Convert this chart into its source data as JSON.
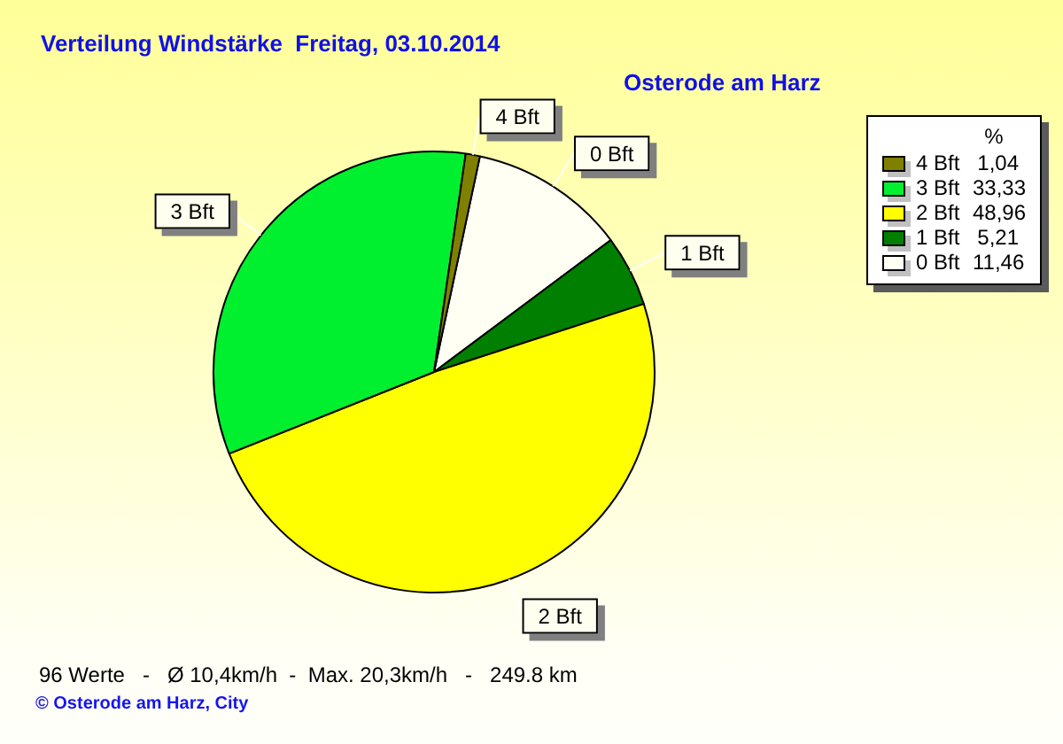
{
  "chart_data": {
    "type": "pie",
    "title": "Verteilung Windstärke  Freitag, 03.10.2014",
    "subtitle": "Osterode am Harz",
    "categories": [
      "4 Bft",
      "3 Bft",
      "2 Bft",
      "1 Bft",
      "0 Bft"
    ],
    "values": [
      1.04,
      33.33,
      48.96,
      5.21,
      11.46
    ],
    "colors": [
      "#808000",
      "#00f030",
      "#ffff00",
      "#007f00",
      "#fffff4"
    ],
    "value_labels": [
      "1,04",
      "33,33",
      "48,96",
      "5,21",
      "11,46"
    ],
    "legend": "top right",
    "legend_title": "%",
    "annotations": [
      "96 Werte   -   Ø 10,4km/h  -  Max. 20,3km/h   -   249.8 km",
      "© Osterode am Harz, City"
    ]
  }
}
